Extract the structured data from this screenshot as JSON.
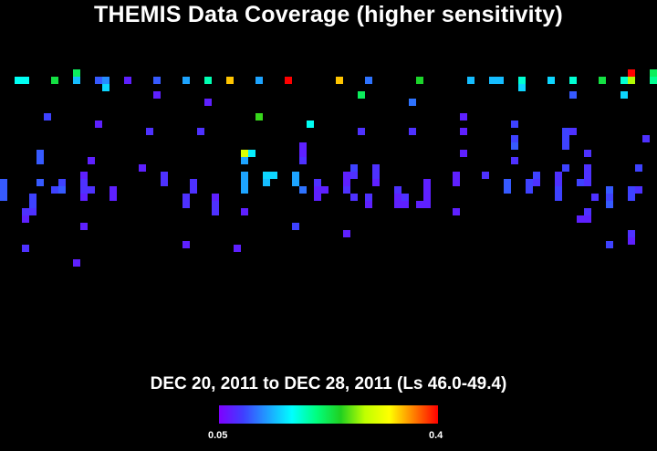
{
  "title": "THEMIS Data Coverage (higher sensitivity)",
  "subtitle": "DEC 20, 2011 to DEC 28, 2011 (Ls 46.0-49.4)",
  "colorbar": {
    "min_label": "0.05",
    "max_label": "0.4",
    "stops": [
      "#7f00ff",
      "#3f3fff",
      "#1f9fff",
      "#00ffff",
      "#00ff7f",
      "#20d020",
      "#c0ff00",
      "#ffff00",
      "#ff8000",
      "#ff0000"
    ]
  },
  "chart_data": {
    "type": "heatmap",
    "title": "THEMIS Data Coverage (higher sensitivity)",
    "subtitle": "DEC 20, 2011 to DEC 28, 2011 (Ls 46.0-49.4)",
    "color_range": [
      0.05,
      0.4
    ],
    "background": "#000000",
    "grid": false,
    "cell_size": 8,
    "cells": [
      [
        16,
        84,
        0.17
      ],
      [
        24,
        84,
        0.17
      ],
      [
        56,
        84,
        0.23
      ],
      [
        80,
        76,
        0.22
      ],
      [
        80,
        84,
        0.14
      ],
      [
        104,
        84,
        0.1
      ],
      [
        112,
        84,
        0.12
      ],
      [
        112,
        92,
        0.15
      ],
      [
        136,
        84,
        0.07
      ],
      [
        168,
        84,
        0.1
      ],
      [
        200,
        84,
        0.13
      ],
      [
        224,
        84,
        0.19
      ],
      [
        248,
        84,
        0.34
      ],
      [
        280,
        84,
        0.13
      ],
      [
        312,
        84,
        0.4
      ],
      [
        368,
        84,
        0.34
      ],
      [
        400,
        84,
        0.11
      ],
      [
        456,
        84,
        0.24
      ],
      [
        512,
        84,
        0.14
      ],
      [
        536,
        84,
        0.14
      ],
      [
        544,
        84,
        0.14
      ],
      [
        568,
        84,
        0.18
      ],
      [
        568,
        92,
        0.15
      ],
      [
        600,
        84,
        0.15
      ],
      [
        624,
        84,
        0.18
      ],
      [
        656,
        84,
        0.23
      ],
      [
        680,
        84,
        0.18
      ],
      [
        688,
        76,
        0.4
      ],
      [
        688,
        84,
        0.28
      ],
      [
        712,
        76,
        0.22
      ],
      [
        712,
        84,
        0.2
      ],
      [
        680,
        100,
        0.15
      ],
      [
        624,
        100,
        0.1
      ],
      [
        168,
        100,
        0.07
      ],
      [
        392,
        100,
        0.22
      ],
      [
        224,
        108,
        0.07
      ],
      [
        448,
        108,
        0.11
      ],
      [
        48,
        124,
        0.09
      ],
      [
        280,
        124,
        0.25
      ],
      [
        504,
        124,
        0.07
      ],
      [
        104,
        132,
        0.07
      ],
      [
        336,
        132,
        0.17
      ],
      [
        560,
        132,
        0.09
      ],
      [
        160,
        140,
        0.08
      ],
      [
        216,
        140,
        0.08
      ],
      [
        392,
        140,
        0.08
      ],
      [
        448,
        140,
        0.08
      ],
      [
        504,
        140,
        0.07
      ],
      [
        616,
        140,
        0.09
      ],
      [
        624,
        140,
        0.08
      ],
      [
        616,
        148,
        0.09
      ],
      [
        560,
        148,
        0.09
      ],
      [
        704,
        148,
        0.08
      ],
      [
        560,
        156,
        0.1
      ],
      [
        616,
        156,
        0.09
      ],
      [
        328,
        156,
        0.07
      ],
      [
        328,
        164,
        0.07
      ],
      [
        264,
        164,
        0.3
      ],
      [
        272,
        164,
        0.16
      ],
      [
        264,
        172,
        0.13
      ],
      [
        504,
        164,
        0.07
      ],
      [
        640,
        164,
        0.08
      ],
      [
        40,
        164,
        0.1
      ],
      [
        40,
        172,
        0.1
      ],
      [
        96,
        172,
        0.07
      ],
      [
        328,
        172,
        0.08
      ],
      [
        560,
        172,
        0.08
      ],
      [
        152,
        180,
        0.07
      ],
      [
        384,
        180,
        0.09
      ],
      [
        408,
        180,
        0.08
      ],
      [
        616,
        180,
        0.09
      ],
      [
        640,
        180,
        0.08
      ],
      [
        696,
        180,
        0.09
      ],
      [
        88,
        188,
        0.07
      ],
      [
        176,
        188,
        0.08
      ],
      [
        264,
        188,
        0.13
      ],
      [
        288,
        188,
        0.15
      ],
      [
        296,
        188,
        0.15
      ],
      [
        320,
        188,
        0.13
      ],
      [
        376,
        188,
        0.07
      ],
      [
        384,
        188,
        0.08
      ],
      [
        408,
        188,
        0.08
      ],
      [
        496,
        188,
        0.07
      ],
      [
        528,
        188,
        0.08
      ],
      [
        584,
        188,
        0.09
      ],
      [
        608,
        188,
        0.08
      ],
      [
        640,
        188,
        0.08
      ],
      [
        0,
        196,
        0.1
      ],
      [
        40,
        196,
        0.1
      ],
      [
        64,
        196,
        0.09
      ],
      [
        88,
        196,
        0.08
      ],
      [
        176,
        196,
        0.08
      ],
      [
        208,
        196,
        0.08
      ],
      [
        264,
        196,
        0.13
      ],
      [
        288,
        196,
        0.14
      ],
      [
        320,
        196,
        0.13
      ],
      [
        344,
        196,
        0.08
      ],
      [
        376,
        196,
        0.07
      ],
      [
        408,
        196,
        0.07
      ],
      [
        464,
        196,
        0.07
      ],
      [
        496,
        196,
        0.07
      ],
      [
        552,
        196,
        0.1
      ],
      [
        576,
        196,
        0.09
      ],
      [
        584,
        196,
        0.08
      ],
      [
        608,
        196,
        0.08
      ],
      [
        632,
        196,
        0.09
      ],
      [
        640,
        196,
        0.08
      ],
      [
        0,
        204,
        0.1
      ],
      [
        56,
        204,
        0.09
      ],
      [
        64,
        204,
        0.1
      ],
      [
        88,
        204,
        0.08
      ],
      [
        96,
        204,
        0.08
      ],
      [
        120,
        204,
        0.07
      ],
      [
        208,
        204,
        0.08
      ],
      [
        264,
        204,
        0.13
      ],
      [
        328,
        204,
        0.11
      ],
      [
        344,
        204,
        0.07
      ],
      [
        352,
        204,
        0.07
      ],
      [
        376,
        204,
        0.08
      ],
      [
        432,
        204,
        0.08
      ],
      [
        464,
        204,
        0.07
      ],
      [
        552,
        204,
        0.1
      ],
      [
        576,
        204,
        0.09
      ],
      [
        608,
        204,
        0.09
      ],
      [
        664,
        204,
        0.1
      ],
      [
        688,
        204,
        0.09
      ],
      [
        696,
        204,
        0.08
      ],
      [
        0,
        212,
        0.1
      ],
      [
        32,
        212,
        0.09
      ],
      [
        88,
        212,
        0.07
      ],
      [
        120,
        212,
        0.07
      ],
      [
        200,
        212,
        0.08
      ],
      [
        232,
        212,
        0.07
      ],
      [
        344,
        212,
        0.07
      ],
      [
        384,
        212,
        0.08
      ],
      [
        400,
        212,
        0.08
      ],
      [
        432,
        212,
        0.07
      ],
      [
        440,
        212,
        0.08
      ],
      [
        464,
        212,
        0.07
      ],
      [
        608,
        212,
        0.09
      ],
      [
        648,
        212,
        0.08
      ],
      [
        664,
        212,
        0.09
      ],
      [
        688,
        212,
        0.09
      ],
      [
        32,
        220,
        0.09
      ],
      [
        200,
        220,
        0.08
      ],
      [
        232,
        220,
        0.08
      ],
      [
        400,
        220,
        0.07
      ],
      [
        432,
        220,
        0.07
      ],
      [
        440,
        220,
        0.07
      ],
      [
        456,
        220,
        0.07
      ],
      [
        464,
        220,
        0.07
      ],
      [
        664,
        220,
        0.1
      ],
      [
        24,
        228,
        0.08
      ],
      [
        32,
        228,
        0.08
      ],
      [
        232,
        228,
        0.08
      ],
      [
        264,
        228,
        0.07
      ],
      [
        496,
        228,
        0.07
      ],
      [
        24,
        236,
        0.07
      ],
      [
        632,
        236,
        0.07
      ],
      [
        640,
        236,
        0.07
      ],
      [
        640,
        228,
        0.08
      ],
      [
        88,
        244,
        0.07
      ],
      [
        320,
        244,
        0.09
      ],
      [
        376,
        252,
        0.07
      ],
      [
        688,
        252,
        0.08
      ],
      [
        24,
        268,
        0.08
      ],
      [
        200,
        264,
        0.07
      ],
      [
        256,
        268,
        0.07
      ],
      [
        664,
        264,
        0.09
      ],
      [
        688,
        260,
        0.07
      ],
      [
        80,
        284,
        0.07
      ]
    ]
  }
}
